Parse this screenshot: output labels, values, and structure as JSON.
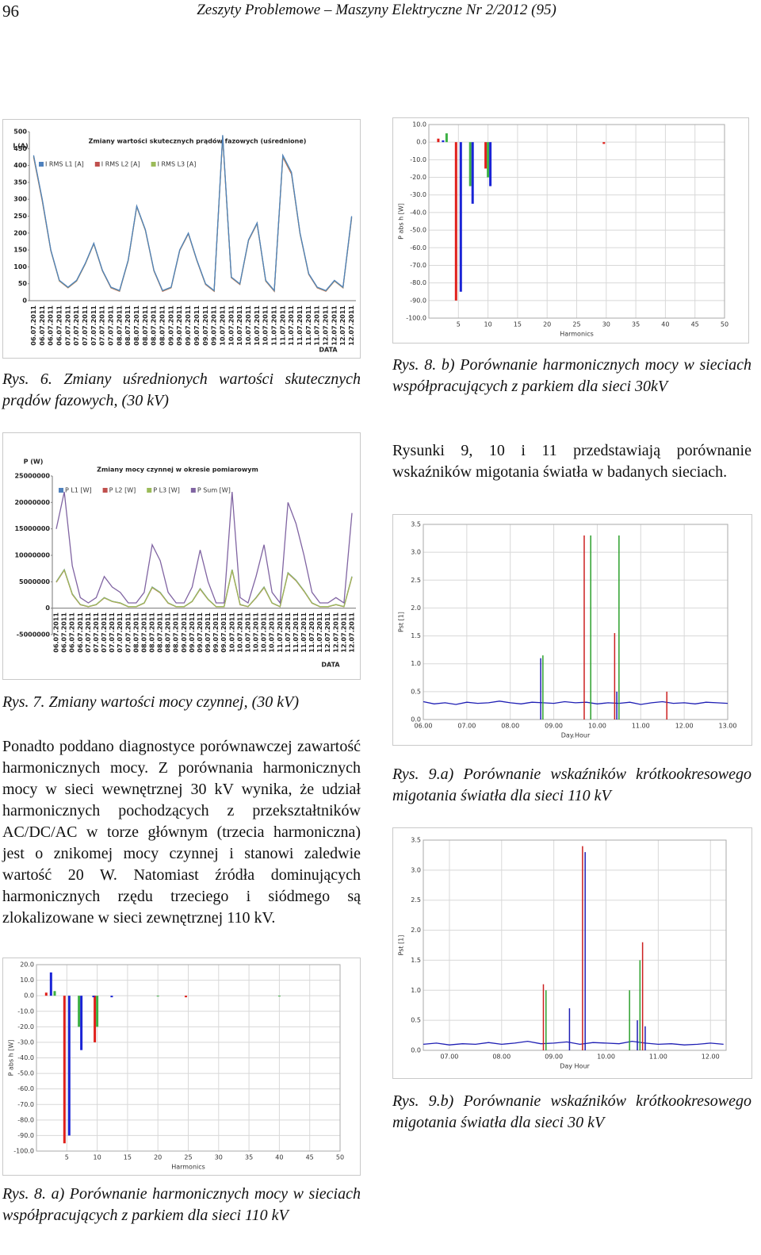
{
  "header": {
    "page_number": "96",
    "journal": "Zeszyty Problemowe – Maszyny Elektryczne Nr 2/2012 (95)"
  },
  "captions": {
    "fig6": "Rys. 6. Zmiany uśrednionych wartości skutecznych prądów fazowych, (30 kV)",
    "fig7": "Rys. 7. Zmiany wartości mocy czynnej, (30 kV)",
    "fig8a": "Rys. 8. a) Porównanie harmonicznych mocy w sieciach współpracujących z parkiem dla sieci 110 kV",
    "fig8b": "Rys. 8. b) Porównanie harmonicznych mocy w sieciach współpracujących z parkiem dla sieci 30kV",
    "fig9a": "Rys. 9.a) Porównanie wskaźników krótkookresowego migotania światła dla sieci 110 kV",
    "fig9b": "Rys. 9.b) Porównanie wskaźników krótkookresowego migotania światła dla sieci 30 kV"
  },
  "text": {
    "left": "Ponadto poddano diagnostyce porównawczej zawartość harmonicznych mocy. Z porównania harmonicznych mocy w sieci wewnętrznej 30 kV wynika, że udział harmonicznych pochodzących z przekształtników AC/DC/AC w torze głównym (trzecia harmoniczna) jest o znikomej mocy czynnej i stanowi zaledwie wartość 20 W. Natomiast źródła dominujących harmonicznych rzędu trzeciego i siódmego są zlokalizowane w sieci zewnętrznej 110 kV.",
    "right": "Rysunki 9, 10 i 11 przedstawiają porównanie wskaźników migotania światła w badanych sieciach."
  },
  "chart_data": [
    {
      "type": "line",
      "title": "Zmiany wartości skutecznych prądów fazowych (uśrednione)",
      "y_label": "I (A)",
      "x_label": "DATA",
      "grid": false,
      "categories": [
        "06.07.2011",
        "06.07.2011",
        "06.07.2011",
        "06.07.2011",
        "07.07.2011",
        "07.07.2011",
        "07.07.2011",
        "07.07.2011",
        "07.07.2011",
        "07.07.2011",
        "08.07.2011",
        "08.07.2011",
        "08.07.2011",
        "08.07.2011",
        "08.07.2011",
        "08.07.2011",
        "09.07.2011",
        "09.07.2011",
        "09.07.2011",
        "09.07.2011",
        "09.07.2011",
        "09.07.2011",
        "10.07.2011",
        "10.07.2011",
        "10.07.2011",
        "10.07.2011",
        "10.07.2011",
        "10.07.2011",
        "11.07.2011",
        "11.07.2011",
        "11.07.2011",
        "11.07.2011",
        "11.07.2011",
        "11.07.2011",
        "12.07.2011",
        "12.07.2011",
        "12.07.2011",
        "12.07.2011"
      ],
      "ylim": [
        0,
        500
      ],
      "yticks": [
        0,
        50,
        100,
        150,
        200,
        250,
        300,
        350,
        400,
        450,
        500
      ],
      "series": [
        {
          "name": "I RMS L2 [A]",
          "color": "#c0504d",
          "values": [
            425,
            295,
            148,
            58,
            38,
            58,
            108,
            168,
            88,
            38,
            28,
            118,
            278,
            208,
            88,
            28,
            38,
            148,
            198,
            118,
            48,
            28,
            485,
            68,
            48,
            178,
            228,
            58,
            28,
            425,
            375,
            198,
            78,
            38,
            28,
            58,
            38,
            245
          ]
        },
        {
          "name": "I RMS L3 [A]",
          "color": "#9bbb59",
          "values": [
            428,
            298,
            149,
            59,
            39,
            59,
            109,
            169,
            89,
            39,
            29,
            119,
            279,
            209,
            89,
            29,
            39,
            149,
            199,
            119,
            49,
            29,
            488,
            69,
            49,
            179,
            229,
            59,
            29,
            428,
            378,
            199,
            79,
            39,
            29,
            59,
            39,
            248
          ]
        },
        {
          "name": "I RMS L1 [A]",
          "color": "#4f81bd",
          "values": [
            430,
            300,
            150,
            60,
            40,
            60,
            110,
            170,
            90,
            40,
            30,
            120,
            280,
            210,
            90,
            30,
            40,
            150,
            200,
            120,
            50,
            30,
            490,
            70,
            50,
            180,
            230,
            60,
            30,
            430,
            380,
            200,
            80,
            40,
            30,
            60,
            40,
            250
          ]
        }
      ]
    },
    {
      "type": "line",
      "title": "Zmiany mocy czynnej w okresie pomiarowym",
      "y_label": "P (W)",
      "x_label": "DATA",
      "grid": false,
      "categories": [
        "06.07.2011",
        "06.07.2011",
        "06.07.2011",
        "06.07.2011",
        "07.07.2011",
        "07.07.2011",
        "07.07.2011",
        "07.07.2011",
        "07.07.2011",
        "07.07.2011",
        "08.07.2011",
        "08.07.2011",
        "08.07.2011",
        "08.07.2011",
        "08.07.2011",
        "08.07.2011",
        "09.07.2011",
        "09.07.2011",
        "09.07.2011",
        "09.07.2011",
        "09.07.2011",
        "09.07.2011",
        "10.07.2011",
        "10.07.2011",
        "10.07.2011",
        "10.07.2011",
        "10.07.2011",
        "10.07.2011",
        "11.07.2011",
        "11.07.2011",
        "11.07.2011",
        "11.07.2011",
        "11.07.2011",
        "11.07.2011",
        "12.07.2011",
        "12.07.2011",
        "12.07.2011",
        "12.07.2011"
      ],
      "ylim": [
        -5000000,
        25000000
      ],
      "yticks": [
        -5000000,
        0,
        5000000,
        10000000,
        15000000,
        20000000,
        25000000
      ],
      "series": [
        {
          "name": "P L1 [W]",
          "color": "#4f81bd",
          "values": [
            5000000,
            7300000,
            2700000,
            700000,
            300000,
            700000,
            2000000,
            1300000,
            1000000,
            300000,
            300000,
            1000000,
            4000000,
            3000000,
            1000000,
            300000,
            300000,
            1300000,
            3700000,
            1700000,
            300000,
            300000,
            7300000,
            700000,
            300000,
            2000000,
            4000000,
            1000000,
            300000,
            6700000,
            5300000,
            3300000,
            1000000,
            300000,
            300000,
            700000,
            300000,
            6000000
          ]
        },
        {
          "name": "P L2 [W]",
          "color": "#c0504d",
          "values": [
            4900000,
            7200000,
            2600000,
            650000,
            280000,
            650000,
            1950000,
            1250000,
            950000,
            280000,
            280000,
            950000,
            3900000,
            2900000,
            950000,
            280000,
            280000,
            1250000,
            3600000,
            1650000,
            280000,
            280000,
            7200000,
            650000,
            280000,
            1950000,
            3900000,
            950000,
            280000,
            6600000,
            5200000,
            3200000,
            950000,
            280000,
            280000,
            650000,
            280000,
            5900000
          ]
        },
        {
          "name": "P L3 [W]",
          "color": "#9bbb59",
          "values": [
            4950000,
            7250000,
            2650000,
            680000,
            290000,
            680000,
            1980000,
            1280000,
            980000,
            290000,
            290000,
            980000,
            3950000,
            2950000,
            980000,
            290000,
            290000,
            1280000,
            3650000,
            1680000,
            290000,
            290000,
            7250000,
            680000,
            290000,
            1980000,
            3950000,
            980000,
            290000,
            6650000,
            5250000,
            3250000,
            980000,
            290000,
            290000,
            680000,
            290000,
            5950000
          ]
        },
        {
          "name": "P Sum [W]",
          "color": "#8064a2",
          "values": [
            15000000,
            22000000,
            8000000,
            2000000,
            1000000,
            2000000,
            6000000,
            4000000,
            3000000,
            1000000,
            1000000,
            3000000,
            12000000,
            9000000,
            3000000,
            1000000,
            1000000,
            4000000,
            11000000,
            5000000,
            1000000,
            1000000,
            22000000,
            2000000,
            1000000,
            6000000,
            12000000,
            3000000,
            1000000,
            20000000,
            16000000,
            10000000,
            3000000,
            1000000,
            1000000,
            2000000,
            1000000,
            18000000
          ]
        }
      ]
    },
    {
      "type": "bar",
      "y_label": "P abs h [W]",
      "x_label": "Harmonics",
      "grid": true,
      "xlim": [
        0,
        50
      ],
      "xticks": [
        5,
        10,
        15,
        20,
        25,
        30,
        35,
        40,
        45,
        50
      ],
      "ylim": [
        -100,
        20
      ],
      "yticks": [
        {
          "value": 20,
          "label": "20.0"
        },
        {
          "value": 10,
          "label": "10.0"
        },
        {
          "value": 0,
          "label": "0.0"
        },
        {
          "value": -10,
          "label": "-10.0"
        },
        {
          "value": -20,
          "label": "-20.0"
        },
        {
          "value": -30,
          "label": "-30.0"
        },
        {
          "value": -40,
          "label": "-40.0"
        },
        {
          "value": -50,
          "label": "-50.0"
        },
        {
          "value": -60,
          "label": "-60.0"
        },
        {
          "value": -70,
          "label": "-70.0"
        },
        {
          "value": -80,
          "label": "-80.0"
        },
        {
          "value": -90,
          "label": "-90.0"
        },
        {
          "value": -100,
          "label": "-100.0"
        }
      ],
      "series": [
        {
          "color": "#e0201b",
          "x": [
            2,
            5,
            10,
            25
          ],
          "values": [
            2,
            -95,
            -30,
            -1
          ]
        },
        {
          "color": "#3cb043",
          "x": [
            3,
            7,
            10,
            20,
            40
          ],
          "values": [
            3,
            -20,
            -20,
            -0.5,
            -0.5
          ]
        },
        {
          "color": "#1a24d6",
          "x": [
            2,
            5,
            7,
            9,
            12
          ],
          "values": [
            15,
            -90,
            -35,
            -1,
            -1
          ]
        }
      ]
    },
    {
      "type": "bar",
      "y_label": "P abs h [W]",
      "x_label": "Harmonics",
      "grid": true,
      "xlim": [
        0,
        50
      ],
      "xticks": [
        5,
        10,
        15,
        20,
        25,
        30,
        35,
        40,
        45,
        50
      ],
      "ylim": [
        -100,
        10
      ],
      "yticks": [
        {
          "value": 10,
          "label": "10.0"
        },
        {
          "value": 0,
          "label": "0.0"
        },
        {
          "value": -10,
          "label": "-10.0"
        },
        {
          "value": -20,
          "label": "-20.0"
        },
        {
          "value": -30,
          "label": "-30.0"
        },
        {
          "value": -40,
          "label": "-40.0"
        },
        {
          "value": -50,
          "label": "-50.0"
        },
        {
          "value": -60,
          "label": "-60.0"
        },
        {
          "value": -70,
          "label": "-70.0"
        },
        {
          "value": -80,
          "label": "-80.0"
        },
        {
          "value": -90,
          "label": "-90.0"
        },
        {
          "value": -100,
          "label": "-100.0"
        }
      ],
      "series": [
        {
          "color": "#e0201b",
          "x": [
            2,
            5,
            10,
            30
          ],
          "values": [
            2,
            -90,
            -15,
            -1
          ]
        },
        {
          "color": "#3cb043",
          "x": [
            3,
            7,
            10
          ],
          "values": [
            5,
            -25,
            -20
          ]
        },
        {
          "color": "#1a24d6",
          "x": [
            2,
            5,
            7,
            10
          ],
          "values": [
            1,
            -85,
            -35,
            -25
          ]
        }
      ]
    },
    {
      "type": "stem",
      "y_label": "Pst [1]",
      "x_label": "Day.Hour",
      "grid": true,
      "xlim": [
        6,
        13
      ],
      "xticks": [
        {
          "value": 6,
          "label": "06.00"
        },
        {
          "value": 7,
          "label": "07.00"
        },
        {
          "value": 8,
          "label": "08.00"
        },
        {
          "value": 9,
          "label": "09.00"
        },
        {
          "value": 10,
          "label": "10.00"
        },
        {
          "value": 11,
          "label": "11.00"
        },
        {
          "value": 12,
          "label": "12.00"
        },
        {
          "value": 13,
          "label": "13.00"
        }
      ],
      "ylim": [
        0,
        3.5
      ],
      "yticks": [
        {
          "value": 0,
          "label": "0.0"
        },
        0.5,
        {
          "value": 1,
          "label": "1.0"
        },
        1.5,
        {
          "value": 2,
          "label": "2.0"
        },
        2.5,
        {
          "value": 3,
          "label": "3.0"
        },
        3.5
      ],
      "series": [
        {
          "style": "line",
          "color": "#1f1fb4",
          "x": [
            6,
            6.25,
            6.5,
            6.75,
            7,
            7.25,
            7.5,
            7.75,
            8,
            8.25,
            8.5,
            8.75,
            9,
            9.25,
            9.5,
            9.75,
            10,
            10.25,
            10.5,
            10.75,
            11,
            11.25,
            11.5,
            11.75,
            12,
            12.25,
            12.5,
            12.75,
            13
          ],
          "values": [
            0.32,
            0.28,
            0.3,
            0.27,
            0.31,
            0.29,
            0.3,
            0.33,
            0.3,
            0.28,
            0.31,
            0.3,
            0.29,
            0.32,
            0.3,
            0.31,
            0.28,
            0.3,
            0.29,
            0.31,
            0.27,
            0.3,
            0.32,
            0.29,
            0.3,
            0.28,
            0.31,
            0.3,
            0.29
          ]
        },
        {
          "style": "stem",
          "color": "#1f1fb4",
          "x": [
            8.7,
            10.45
          ],
          "values": [
            1.1,
            0.5
          ]
        },
        {
          "style": "stem",
          "color": "#cc2020",
          "x": [
            9.7,
            10.4,
            11.6
          ],
          "values": [
            3.3,
            1.55,
            0.5
          ]
        },
        {
          "style": "stem",
          "color": "#2ca02c",
          "x": [
            8.75,
            9.85,
            10.5
          ],
          "values": [
            1.15,
            3.3,
            3.3
          ]
        }
      ]
    },
    {
      "type": "stem",
      "y_label": "Pst [1]",
      "x_label": "Day Hour",
      "grid": true,
      "xlim": [
        6.5,
        12.3
      ],
      "xticks": [
        {
          "value": 7,
          "label": "07.00"
        },
        {
          "value": 8,
          "label": "08.00"
        },
        {
          "value": 9,
          "label": "09.00"
        },
        {
          "value": 10,
          "label": "10.00"
        },
        {
          "value": 11,
          "label": "11.00"
        },
        {
          "value": 12,
          "label": "12.00"
        }
      ],
      "ylim": [
        0,
        3.5
      ],
      "yticks": [
        {
          "value": 0,
          "label": "0.0"
        },
        0.5,
        {
          "value": 1,
          "label": "1.0"
        },
        1.5,
        {
          "value": 2,
          "label": "2.0"
        },
        2.5,
        {
          "value": 3,
          "label": "3.0"
        },
        3.5
      ],
      "series": [
        {
          "style": "line",
          "color": "#1f1fb4",
          "x": [
            6.5,
            6.75,
            7,
            7.25,
            7.5,
            7.75,
            8,
            8.25,
            8.5,
            8.75,
            9,
            9.25,
            9.5,
            9.75,
            10,
            10.25,
            10.5,
            10.75,
            11,
            11.25,
            11.5,
            11.75,
            12,
            12.25
          ],
          "values": [
            0.1,
            0.12,
            0.09,
            0.11,
            0.1,
            0.13,
            0.1,
            0.12,
            0.15,
            0.11,
            0.12,
            0.14,
            0.1,
            0.13,
            0.12,
            0.11,
            0.15,
            0.12,
            0.1,
            0.11,
            0.09,
            0.1,
            0.12,
            0.1
          ]
        },
        {
          "style": "stem",
          "color": "#1f1fb4",
          "x": [
            9.3,
            9.6,
            10.6,
            10.75
          ],
          "values": [
            0.7,
            3.3,
            0.5,
            0.4
          ]
        },
        {
          "style": "stem",
          "color": "#cc2020",
          "x": [
            8.8,
            9.55,
            10.7
          ],
          "values": [
            1.1,
            3.4,
            1.8
          ]
        },
        {
          "style": "stem",
          "color": "#2ca02c",
          "x": [
            8.85,
            10.45,
            10.65
          ],
          "values": [
            1.0,
            1.0,
            1.5
          ]
        }
      ]
    }
  ]
}
